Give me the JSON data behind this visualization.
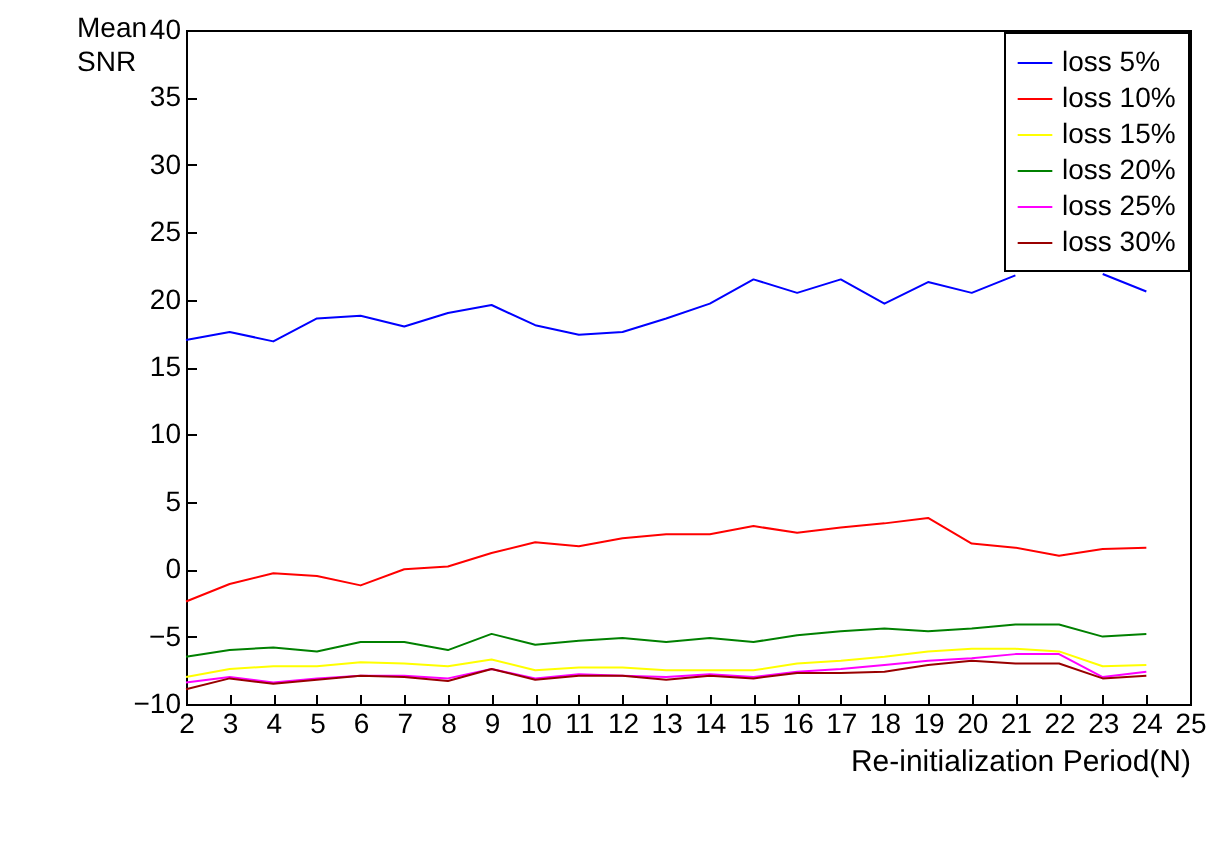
{
  "chart_data": {
    "type": "line",
    "xlabel": "Re-initialization Period(N)",
    "ylabel": "Mean SNR",
    "x": [
      2,
      3,
      4,
      5,
      6,
      7,
      8,
      9,
      10,
      11,
      12,
      13,
      14,
      15,
      16,
      17,
      18,
      19,
      20,
      21,
      22,
      23,
      24
    ],
    "series": [
      {
        "name": "loss  5%",
        "color": "#0000ff",
        "values": [
          17.0,
          17.6,
          16.9,
          18.6,
          18.8,
          18.0,
          19.0,
          19.6,
          18.1,
          17.4,
          17.6,
          18.6,
          19.7,
          21.5,
          20.5,
          21.5,
          19.7,
          21.3,
          20.5,
          21.8,
          null,
          21.9,
          20.6
        ]
      },
      {
        "name": "loss 10%",
        "color": "#ff0000",
        "values": [
          -2.4,
          -1.1,
          -0.3,
          -0.5,
          -1.2,
          0,
          0.2,
          1.2,
          2.0,
          1.7,
          2.3,
          2.6,
          2.6,
          3.2,
          2.7,
          3.1,
          3.4,
          3.8,
          1.9,
          1.6,
          1.0,
          1.5,
          1.6
        ]
      },
      {
        "name": "loss 15%",
        "color": "#ffff00",
        "values": [
          -8.0,
          -7.4,
          -7.2,
          -7.2,
          -6.9,
          -7.0,
          -7.2,
          -6.7,
          -7.5,
          -7.3,
          -7.3,
          -7.5,
          -7.5,
          -7.5,
          -7.0,
          -6.8,
          -6.5,
          -6.1,
          -5.9,
          -5.9,
          -6.1,
          -7.2,
          -7.1
        ]
      },
      {
        "name": "loss 20%",
        "color": "#008000",
        "values": [
          -6.5,
          -6.0,
          -5.8,
          -6.1,
          -5.4,
          -5.4,
          -6.0,
          -4.8,
          -5.6,
          -5.3,
          -5.1,
          -5.4,
          -5.1,
          -5.4,
          -4.9,
          -4.6,
          -4.4,
          -4.6,
          -4.4,
          -4.1,
          -4.1,
          -5.0,
          -4.8
        ]
      },
      {
        "name": "loss 25%",
        "color": "#ff00ff",
        "values": [
          -8.4,
          -8.0,
          -8.4,
          -8.1,
          -7.9,
          -7.9,
          -8.1,
          -7.4,
          -8.1,
          -7.8,
          -7.9,
          -8.0,
          -7.8,
          -8.0,
          -7.6,
          -7.4,
          -7.1,
          -6.8,
          -6.6,
          -6.3,
          -6.3,
          -8.0,
          -7.6
        ]
      },
      {
        "name": "loss 30%",
        "color": "#990000",
        "values": [
          -8.9,
          -8.1,
          -8.5,
          -8.2,
          -7.9,
          -8.0,
          -8.3,
          -7.4,
          -8.2,
          -7.9,
          -7.9,
          -8.2,
          -7.9,
          -8.1,
          -7.7,
          -7.7,
          -7.6,
          -7.1,
          -6.8,
          -7.0,
          -7.0,
          -8.1,
          -7.9
        ]
      }
    ],
    "xlim": [
      2,
      25
    ],
    "xticks": [
      2,
      3,
      4,
      5,
      6,
      7,
      8,
      9,
      10,
      11,
      12,
      13,
      14,
      15,
      16,
      17,
      18,
      19,
      20,
      21,
      22,
      23,
      24,
      25
    ],
    "ylim": [
      -10,
      40
    ],
    "yticks": [
      -10,
      -5,
      0,
      5,
      10,
      15,
      20,
      25,
      30,
      35,
      40
    ],
    "legend": "top right",
    "grid": false
  }
}
